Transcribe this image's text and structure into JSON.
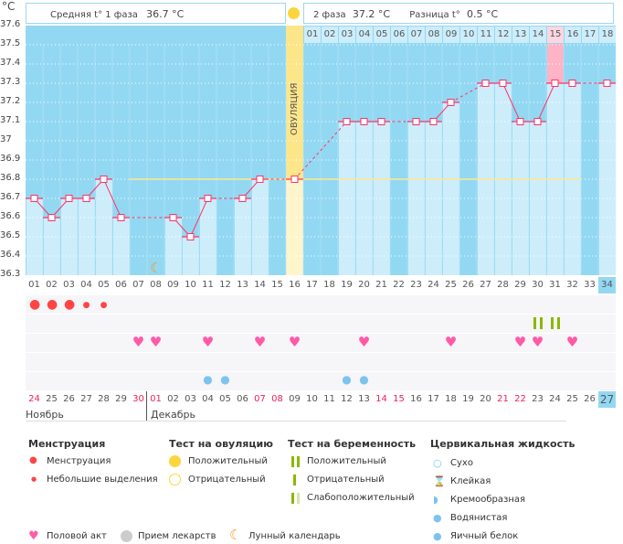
{
  "header": {
    "unit": "°C",
    "phase1_label": "Средняя t° 1 фаза",
    "phase1_value": "36.7 °C",
    "phase2_label": "2 фаза",
    "phase2_value": "37.2 °C",
    "diff_label": "Разница t°",
    "diff_value": "0.5 °C",
    "ovulation_label": "ОВУЛЯЦИЯ"
  },
  "chart_data": {
    "type": "line",
    "ylabel": "°C",
    "ylim": [
      36.3,
      37.6
    ],
    "yticks": [
      "37.6",
      "37.5",
      "37.4",
      "37.3",
      "37.2",
      "37.1",
      "37",
      "36.9",
      "36.8",
      "36.7",
      "36.6",
      "36.5",
      "36.4",
      "36.3"
    ],
    "cycle_days": [
      "01",
      "02",
      "03",
      "04",
      "05",
      "06",
      "07",
      "08",
      "09",
      "10",
      "11",
      "12",
      "13",
      "14",
      "15",
      "16",
      "17",
      "18",
      "19",
      "20",
      "21",
      "22",
      "23",
      "24",
      "25",
      "26",
      "27",
      "28",
      "29",
      "30",
      "31",
      "32",
      "33",
      "34"
    ],
    "temperatures": [
      36.7,
      36.6,
      36.7,
      36.7,
      36.8,
      36.6,
      null,
      null,
      36.6,
      36.5,
      36.7,
      null,
      36.7,
      36.8,
      null,
      36.8,
      null,
      null,
      37.1,
      37.1,
      37.1,
      null,
      37.1,
      37.1,
      37.2,
      null,
      37.3,
      37.3,
      37.1,
      37.1,
      37.3,
      37.3,
      null,
      37.3
    ],
    "coverline": 36.8,
    "ovulation_day": 16,
    "luteal_days": [
      "01",
      "02",
      "03",
      "04",
      "05",
      "06",
      "07",
      "08",
      "09",
      "10",
      "11",
      "12",
      "13",
      "14",
      "15",
      "16",
      "17",
      "18"
    ],
    "highlight_luteal_day": "15",
    "current_day": "34",
    "dates": [
      "24",
      "25",
      "26",
      "27",
      "28",
      "29",
      "30",
      "01",
      "02",
      "03",
      "04",
      "05",
      "06",
      "07",
      "08",
      "09",
      "10",
      "11",
      "12",
      "13",
      "14",
      "15",
      "16",
      "17",
      "18",
      "19",
      "20",
      "21",
      "22",
      "23",
      "24",
      "25",
      "26",
      "27"
    ],
    "weekend_dates_idx": [
      1,
      7,
      8,
      14,
      15,
      21,
      22,
      28,
      29
    ],
    "months": [
      "Ноябрь",
      "Декабрь"
    ],
    "moon_day": 8,
    "menstruation_days": [
      1,
      2,
      3
    ],
    "spotting_days": [
      4,
      5
    ],
    "pregnancy_test_positive_days": [
      30,
      31
    ],
    "intercourse_days": [
      7,
      8,
      11,
      14,
      16,
      20,
      25,
      29,
      30,
      32
    ],
    "watery_fluid_days": [
      11,
      12,
      19,
      20
    ]
  },
  "colors": {
    "bg": "#93d8f2",
    "bar": "#cdedfb",
    "line": "#ff3366",
    "ovulation": "#fde68a",
    "coverline": "#ffe88a",
    "highlight": "#ffb3c6",
    "heart": "#ff5aa8",
    "blood": "#f44",
    "test": "#8ab800",
    "fluid": "#7cc4ee",
    "moon": "#f39c1a"
  },
  "legend": {
    "menstruation": {
      "title": "Менструация",
      "items": [
        "Менструация",
        "Небольшие выделения"
      ]
    },
    "ovulation_test": {
      "title": "Тест на овуляцию",
      "items": [
        "Положительный",
        "Отрицательный"
      ]
    },
    "pregnancy_test": {
      "title": "Тест на беременность",
      "items": [
        "Положительный",
        "Отрицательный",
        "Слабоположительный"
      ]
    },
    "cervical": {
      "title": "Цервикальная жидкость",
      "items": [
        "Сухо",
        "Клейкая",
        "Кремообразная",
        "Водянистая",
        "Яичный белок"
      ]
    },
    "other": [
      "Половой акт",
      "Прием лекарств",
      "Лунный календарь"
    ]
  }
}
